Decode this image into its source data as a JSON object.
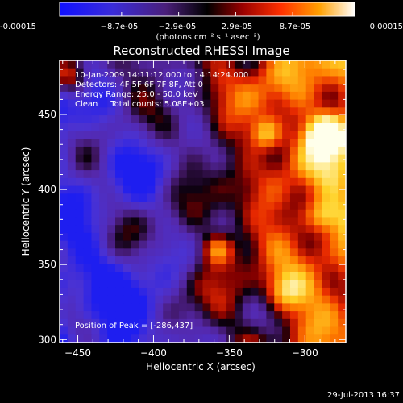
{
  "colorbar": {
    "tick_labels": [
      "-0.00015",
      "−8.7e-05",
      "−2.9e-05",
      "2.9e-05",
      "8.7e-05",
      "0.00015"
    ],
    "tick_values": [
      -0.00015,
      -8.7e-05,
      -2.9e-05,
      2.9e-05,
      8.7e-05,
      0.00015
    ],
    "range": [
      -0.00015,
      0.00015
    ],
    "units_label": "(photons cm⁻² s⁻¹ asec⁻²)"
  },
  "chart_data": {
    "type": "heatmap",
    "title": "Reconstructed RHESSI Image",
    "xlabel": "Heliocentric X (arcsec)",
    "ylabel": "Heliocentric Y (arcsec)",
    "xlim": [
      -462,
      -273
    ],
    "ylim": [
      298,
      486
    ],
    "x_ticks": [
      -450,
      -400,
      -350,
      -300
    ],
    "x_tick_labels": [
      "−450",
      "−400",
      "−350",
      "−300"
    ],
    "y_ticks": [
      300,
      350,
      400,
      450
    ],
    "y_tick_labels": [
      "300",
      "350",
      "400",
      "450"
    ],
    "info_lines": [
      "10-Jan-2009 14:11:12.000 to 14:14:24.000",
      "Detectors: 4F 5F 6F 7F 8F, Att 0",
      "Energy Range: 25.0 - 50.0 keV",
      "Clean     Total counts: 5.08E+03"
    ],
    "peak_label": "Position of Peak = [-286,437]",
    "peak_position": [
      -286,
      437
    ],
    "colormap": "black-blue-purple-red-orange-yellow-white"
  },
  "footer": {
    "date": "29-Jul-2013 16:37"
  }
}
